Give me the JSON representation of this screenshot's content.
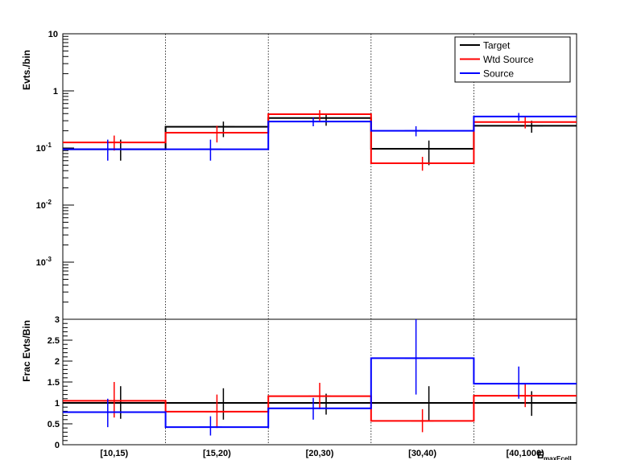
{
  "chart_data": [
    {
      "type": "histogram",
      "panel": "upper",
      "ylabel": "Evts./bin",
      "yscale": "log",
      "ylim": [
        0.0001,
        10
      ],
      "ytick_labels": [
        {
          "value": 10,
          "base": "10",
          "exp": ""
        },
        {
          "value": 1,
          "base": "1",
          "exp": ""
        },
        {
          "value": 0.1,
          "base": "10",
          "exp": "-1"
        },
        {
          "value": 0.01,
          "base": "10",
          "exp": "-2"
        },
        {
          "value": 0.001,
          "base": "10",
          "exp": "-3"
        }
      ],
      "categories": [
        "[10,15)",
        "[15,20)",
        "[20,30)",
        "[30,40)",
        "[40,1000)"
      ],
      "legend": {
        "placement": "top-right",
        "entries": [
          "Target",
          "Wtd Source",
          "Source"
        ]
      },
      "series": [
        {
          "name": "Target",
          "color": "#000000",
          "values": [
            0.095,
            0.235,
            0.335,
            0.097,
            0.245
          ],
          "err_low": [
            0.06,
            0.155,
            0.245,
            0.05,
            0.185
          ],
          "err_high": [
            0.14,
            0.29,
            0.39,
            0.135,
            0.3
          ]
        },
        {
          "name": "Wtd Source",
          "color": "#ff0000",
          "values": [
            0.125,
            0.185,
            0.39,
            0.054,
            0.285
          ],
          "err_low": [
            0.09,
            0.125,
            0.3,
            0.04,
            0.22
          ],
          "err_high": [
            0.165,
            0.245,
            0.46,
            0.07,
            0.355
          ]
        },
        {
          "name": "Source",
          "color": "#0000ff",
          "values": [
            0.095,
            0.095,
            0.29,
            0.2,
            0.355
          ],
          "err_low": [
            0.06,
            0.06,
            0.24,
            0.16,
            0.3
          ],
          "err_high": [
            0.14,
            0.14,
            0.34,
            0.24,
            0.41
          ]
        }
      ]
    },
    {
      "type": "histogram",
      "panel": "lower",
      "ylabel": "Frac Evts/Bin",
      "xlabel": "E",
      "xlabel_sub": "maxEcell",
      "ylim": [
        0,
        3
      ],
      "yticks": [
        "0",
        "0.5",
        "1",
        "1.5",
        "2",
        "2.5",
        "3"
      ],
      "categories": [
        "[10,15)",
        "[15,20)",
        "[20,30)",
        "[30,40)",
        "[40,1000)"
      ],
      "series": [
        {
          "name": "Target",
          "color": "#000000",
          "values": [
            1,
            1,
            1,
            1,
            1
          ],
          "err_low": [
            0.62,
            0.6,
            0.72,
            0.56,
            0.69
          ],
          "err_high": [
            1.4,
            1.35,
            1.22,
            1.4,
            1.28
          ]
        },
        {
          "name": "Wtd Source",
          "color": "#ff0000",
          "values": [
            1.05,
            0.79,
            1.16,
            0.57,
            1.17
          ],
          "err_low": [
            0.65,
            0.4,
            0.85,
            0.3,
            0.9
          ],
          "err_high": [
            1.5,
            1.2,
            1.48,
            0.85,
            1.45
          ]
        },
        {
          "name": "Source",
          "color": "#0000ff",
          "values": [
            0.78,
            0.42,
            0.87,
            2.07,
            1.46
          ],
          "err_low": [
            0.42,
            0.22,
            0.6,
            1.2,
            1.1
          ],
          "err_high": [
            1.1,
            0.68,
            1.12,
            3.0,
            1.87
          ]
        }
      ]
    }
  ]
}
